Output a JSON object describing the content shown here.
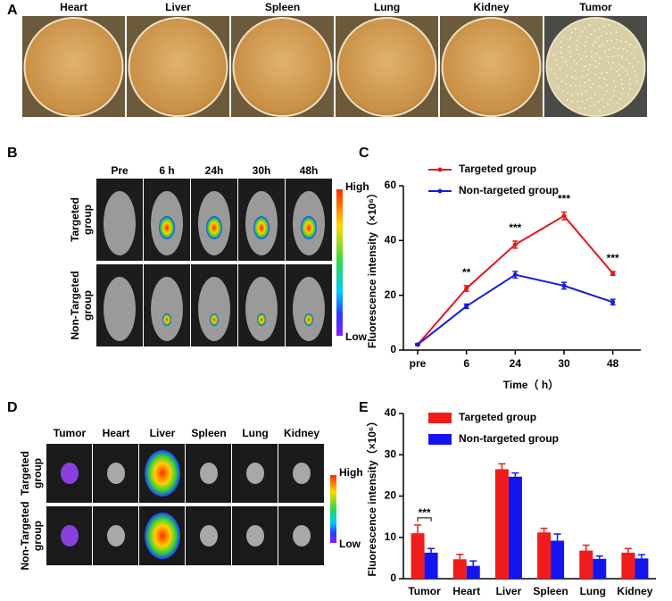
{
  "panel_labels": [
    "A",
    "B",
    "C",
    "D",
    "E"
  ],
  "panel_a": {
    "organs": [
      "Heart",
      "Liver",
      "Spleen",
      "Lung",
      "Kidney",
      "Tumor"
    ]
  },
  "panel_b": {
    "timepoints": [
      "Pre",
      "6 h",
      "24h",
      "30h",
      "48h"
    ],
    "groups": [
      "Targeted group",
      "Non-Targeted group"
    ],
    "scale": {
      "high": "High",
      "low": "Low"
    }
  },
  "panel_d": {
    "organs": [
      "Tumor",
      "Heart",
      "Liver",
      "Spleen",
      "Lung",
      "Kidney"
    ],
    "groups": [
      "Targeted group",
      "Non-Targeted group"
    ],
    "scale": {
      "high": "High",
      "low": "Low"
    }
  },
  "chart_data": [
    {
      "type": "line",
      "x_label": "Time（ h）",
      "y_label": "Fluorescence intensity（×10⁶）",
      "categories": [
        "pre",
        "6",
        "24",
        "30",
        "48"
      ],
      "series": [
        {
          "name": "Targeted group",
          "color": "#e8141b",
          "values": [
            2,
            22.5,
            38.5,
            49,
            28
          ],
          "errors": [
            0.3,
            1,
            1.3,
            1.4,
            0.7
          ]
        },
        {
          "name": "Non-targeted group",
          "color": "#1a1adb",
          "values": [
            2,
            16,
            27.5,
            23.5,
            17.5
          ],
          "errors": [
            0.3,
            0.8,
            1.2,
            1.2,
            1
          ]
        }
      ],
      "significance": [
        null,
        "**",
        "***",
        "***",
        "***"
      ],
      "ylim": [
        0,
        60
      ],
      "yticks": [
        0,
        20,
        40,
        60
      ],
      "legend": "upper left"
    },
    {
      "type": "bar",
      "y_label": "Fluorescence intensity（×10⁶）",
      "categories": [
        "Tumor",
        "Heart",
        "Liver",
        "Spleen",
        "Lung",
        "Kidney"
      ],
      "series": [
        {
          "name": "Targeted group",
          "color": "#f01c1c",
          "values": [
            11,
            4.7,
            26.5,
            11.2,
            6.8,
            6.3
          ],
          "errors": [
            2,
            1.2,
            1.3,
            1,
            1.3,
            1
          ]
        },
        {
          "name": "Non-targeted group",
          "color": "#1414f0",
          "values": [
            6.3,
            3.1,
            24.7,
            9.2,
            4.8,
            4.9
          ],
          "errors": [
            1,
            1.2,
            0.9,
            1.6,
            0.7,
            0.9
          ]
        }
      ],
      "significance": [
        "***",
        null,
        null,
        null,
        null,
        null
      ],
      "ylim": [
        0,
        40
      ],
      "yticks": [
        0,
        10,
        20,
        30,
        40
      ],
      "legend": "upper left"
    }
  ]
}
